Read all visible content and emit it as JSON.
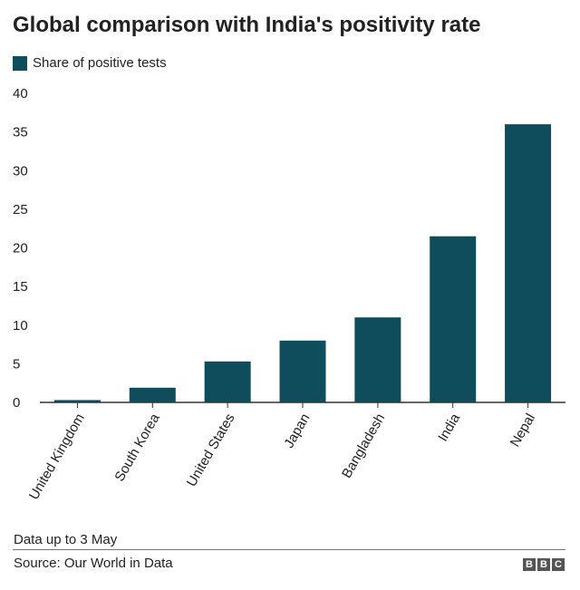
{
  "chart_data": {
    "type": "bar",
    "title": "Global comparison with India's positivity rate",
    "legend": [
      "Share of positive tests"
    ],
    "categories": [
      "United Kingdom",
      "South Korea",
      "United States",
      "Japan",
      "Bangladesh",
      "India",
      "Nepal"
    ],
    "series": [
      {
        "name": "Share of positive tests",
        "values": [
          0.3,
          1.9,
          5.3,
          8.0,
          11.0,
          21.5,
          36.0
        ]
      }
    ],
    "ylim": [
      0,
      40
    ],
    "yticks": [
      0,
      5,
      10,
      15,
      20,
      25,
      30,
      35,
      40
    ],
    "xlabel": "",
    "ylabel": "",
    "grid": false
  },
  "colors": {
    "bar": "#0f4c5c",
    "axis": "#333333"
  },
  "footer": {
    "note": "Data up to 3 May",
    "source": "Source: Our World in Data",
    "logo_letters": [
      "B",
      "B",
      "C"
    ]
  }
}
